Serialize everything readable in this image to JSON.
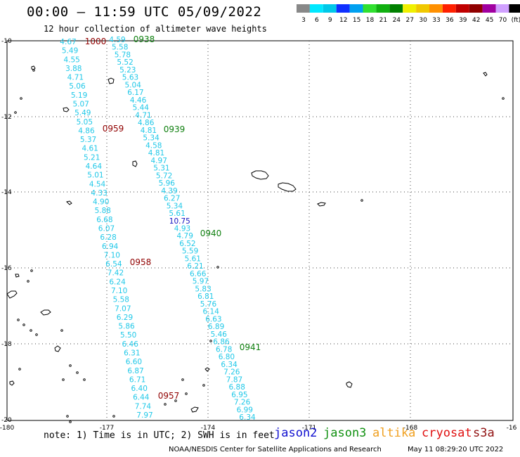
{
  "title": "00:00 – 11:59 UTC 05/09/2022",
  "subtitle": "12 hour collection of altimeter wave heights",
  "note": "note: 1) Time is in UTC; 2) SWH is in feet",
  "footer": "NOAA/NESDIS Center for Satellite Applications and Research",
  "footer_timestamp": "May 11 08:29:20 UTC 2022",
  "satellites": [
    {
      "name": "jason2",
      "color": "#1010d0"
    },
    {
      "name": "jason3",
      "color": "#109010"
    },
    {
      "name": "altika",
      "color": "#f0a020"
    },
    {
      "name": "cryosat",
      "color": "#e01010"
    },
    {
      "name": "s3a",
      "color": "#901010"
    }
  ],
  "legend": {
    "labels": [
      "3",
      "6",
      "9",
      "12",
      "15",
      "18",
      "21",
      "24",
      "27",
      "30",
      "33",
      "36",
      "39",
      "42",
      "45",
      "70",
      "(ft)"
    ],
    "colors": [
      "#888888",
      "#00e8ff",
      "#00c8e8",
      "#1030ff",
      "#00a0f0",
      "#30e030",
      "#10b010",
      "#008000",
      "#f0f000",
      "#f0c800",
      "#ff9000",
      "#ff2000",
      "#c00000",
      "#900000",
      "#a000a0",
      "#d0a0ff",
      "#000000"
    ]
  },
  "map": {
    "x_ticks": [
      "-180",
      "-177",
      "-174",
      "-171",
      "-168",
      "-16"
    ],
    "y_ticks": [
      "-10",
      "-12",
      "-14",
      "-16",
      "-18",
      "-20"
    ]
  },
  "tracks": [
    {
      "name": "track-west",
      "color": "#20c8e8",
      "values": [
        "4.67",
        "5.49",
        "4.55",
        "3.88",
        "4.71",
        "5.06",
        "5.19",
        "5.07",
        "5.49",
        "5.05",
        "4.86",
        "5.37",
        "4.61",
        "5.21",
        "4.64",
        "5.01",
        "4.54",
        "4.33",
        "4.90",
        "5.88",
        "6.68",
        "6.07",
        "6.28",
        "6.94",
        "7.10",
        "6.54",
        "7.42",
        "6.24",
        "7.10",
        "5.58",
        "7.07",
        "6.29",
        "5.86",
        "5.50",
        "6.46",
        "6.31",
        "6.60",
        "6.87",
        "6.71",
        "6.40",
        "6.44",
        "7.74",
        "7.97"
      ]
    },
    {
      "name": "track-east",
      "color": "#20c8e8",
      "values": [
        "4.59",
        "5.58",
        "5.78",
        "5.52",
        "5.23",
        "5.63",
        "5.04",
        "6.17",
        "4.46",
        "5.44",
        "4.71",
        "4.86",
        "4.81",
        "5.34",
        "4.58",
        "4.81",
        "4.97",
        "5.31",
        "5.72",
        "5.96",
        "4.39",
        "6.27",
        "5.34",
        "5.61",
        "10.75",
        "4.93",
        "4.79",
        "6.52",
        "5.59",
        "5.61",
        "6.21",
        "6.66",
        "5.97",
        "5.83",
        "6.81",
        "5.76",
        "6.14",
        "6.63",
        "6.89",
        "5.46",
        "6.86",
        "6.78",
        "6.80",
        "6.34",
        "7.26",
        "7.87",
        "6.88",
        "6.95",
        "7.26",
        "6.99",
        "6.34"
      ]
    }
  ],
  "time_labels": [
    {
      "text": "1000",
      "color": "#900000"
    },
    {
      "text": "0959",
      "color": "#900000"
    },
    {
      "text": "0958",
      "color": "#900000"
    },
    {
      "text": "0957",
      "color": "#900000"
    },
    {
      "text": "0938",
      "color": "#108010"
    },
    {
      "text": "0939",
      "color": "#108010"
    },
    {
      "text": "0940",
      "color": "#108010"
    },
    {
      "text": "0941",
      "color": "#108010"
    }
  ],
  "highlight_value": {
    "text": "10.75",
    "color": "#1010c0"
  }
}
